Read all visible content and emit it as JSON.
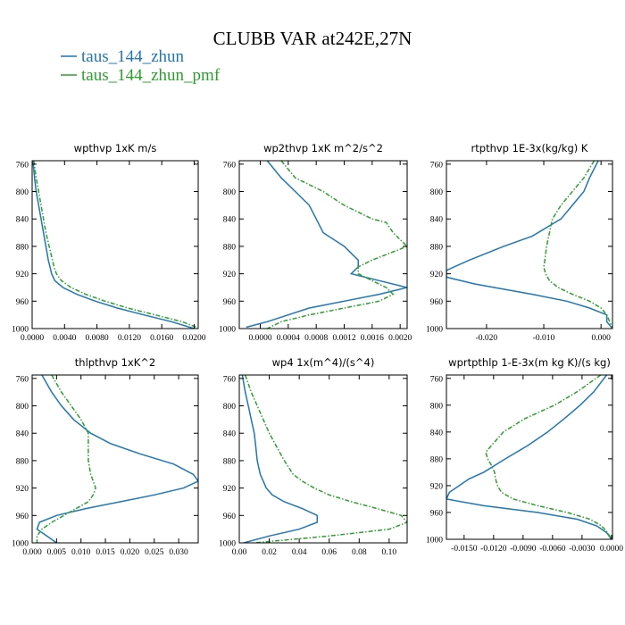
{
  "figure": {
    "title": "CLUBB VAR at242E,27N",
    "legend": [
      {
        "name": "taus_144_zhun",
        "color": "#1f77b4",
        "dash": "solid"
      },
      {
        "name": "taus_144_zhun_pmf",
        "color": "#2ca02c",
        "dash": "dashdot"
      }
    ]
  },
  "chart_data": [
    {
      "type": "line",
      "title": "wpthvp   1xK m/s",
      "xlim": [
        0,
        0.0205
      ],
      "ylim": [
        1000,
        755
      ],
      "xticks": [
        "0.0000",
        "0.0040",
        "0.0080",
        "0.0120",
        "0.0160",
        "0.0200"
      ],
      "xtick_values": [
        0,
        0.004,
        0.008,
        0.012,
        0.016,
        0.02
      ],
      "yticks": [
        "760",
        "800",
        "840",
        "880",
        "920",
        "960",
        "1000"
      ],
      "ytick_values": [
        760,
        800,
        840,
        880,
        920,
        960,
        1000
      ],
      "series": [
        {
          "name": "taus_144_zhun",
          "y": [
            755,
            780,
            800,
            820,
            840,
            860,
            880,
            900,
            910,
            920,
            930,
            940,
            950,
            960,
            970,
            980,
            990,
            1000
          ],
          "x": [
            0.0001,
            0.0003,
            0.0005,
            0.0008,
            0.0011,
            0.0014,
            0.0017,
            0.002,
            0.0022,
            0.0024,
            0.0028,
            0.0038,
            0.0055,
            0.0078,
            0.0105,
            0.0138,
            0.0172,
            0.02
          ]
        },
        {
          "name": "taus_144_zhun_pmf",
          "y": [
            755,
            780,
            800,
            820,
            840,
            860,
            880,
            900,
            910,
            920,
            930,
            940,
            950,
            960,
            970,
            980,
            990,
            998
          ],
          "x": [
            0.0002,
            0.0005,
            0.0008,
            0.0011,
            0.0014,
            0.0017,
            0.0021,
            0.0025,
            0.0027,
            0.003,
            0.0036,
            0.0048,
            0.0066,
            0.009,
            0.0118,
            0.0152,
            0.0185,
            0.0203
          ]
        }
      ]
    },
    {
      "type": "line",
      "title": "wp2thvp   1xK m^2/s^2",
      "xlim": [
        -0.0003,
        0.0021
      ],
      "ylim": [
        1000,
        755
      ],
      "xticks": [
        "0.0000",
        "0.0004",
        "0.0008",
        "0.0012",
        "0.0016",
        "0.0020"
      ],
      "xtick_values": [
        0,
        0.0004,
        0.0008,
        0.0012,
        0.0016,
        0.002
      ],
      "yticks": [
        "760",
        "800",
        "840",
        "880",
        "920",
        "960",
        "1000"
      ],
      "ytick_values": [
        760,
        800,
        840,
        880,
        920,
        960,
        1000
      ],
      "series": [
        {
          "name": "taus_144_zhun",
          "y": [
            755,
            780,
            800,
            820,
            840,
            860,
            880,
            900,
            910,
            920,
            930,
            940,
            950,
            960,
            970,
            980,
            990,
            998
          ],
          "x": [
            0.0001,
            0.0003,
            0.0005,
            0.0007,
            0.0008,
            0.0009,
            0.0012,
            0.0014,
            0.0014,
            0.0013,
            0.0017,
            0.0021,
            0.0017,
            0.0012,
            0.0007,
            0.0004,
            0.0001,
            -0.0002
          ]
        },
        {
          "name": "taus_144_zhun_pmf",
          "y": [
            755,
            780,
            800,
            820,
            840,
            845,
            860,
            880,
            900,
            910,
            920,
            930,
            940,
            950,
            960,
            970,
            980,
            990,
            1000
          ],
          "x": [
            0.0003,
            0.0005,
            0.0009,
            0.0012,
            0.0016,
            0.0018,
            0.0019,
            0.0021,
            0.0016,
            0.0014,
            0.0014,
            0.0016,
            0.0018,
            0.0019,
            0.0017,
            0.0012,
            0.0007,
            0.0003,
            0.0001
          ]
        }
      ]
    },
    {
      "type": "line",
      "title": "rtpthvp   1E-3x(kg/kg) K",
      "xlim": [
        -0.027,
        0.002
      ],
      "ylim": [
        1000,
        755
      ],
      "xticks": [
        "-0.020",
        "-0.010",
        "0.000"
      ],
      "xtick_values": [
        -0.02,
        -0.01,
        0
      ],
      "yticks": [
        "760",
        "800",
        "840",
        "880",
        "920",
        "960",
        "1000"
      ],
      "ytick_values": [
        760,
        800,
        840,
        880,
        920,
        960,
        1000
      ],
      "series": [
        {
          "name": "taus_144_zhun",
          "y": [
            755,
            780,
            800,
            820,
            840,
            850,
            865,
            880,
            900,
            915,
            925,
            935,
            950,
            960,
            970,
            980,
            990,
            1000
          ],
          "x": [
            -0.0005,
            -0.002,
            -0.003,
            -0.005,
            -0.007,
            -0.009,
            -0.012,
            -0.017,
            -0.023,
            -0.027,
            -0.027,
            -0.022,
            -0.012,
            -0.006,
            -0.002,
            0.001,
            0.001,
            0.002
          ]
        },
        {
          "name": "taus_144_zhun_pmf",
          "y": [
            755,
            780,
            800,
            820,
            840,
            860,
            880,
            900,
            910,
            920,
            930,
            940,
            950,
            960,
            970,
            980,
            990,
            1000
          ],
          "x": [
            -0.0012,
            -0.003,
            -0.005,
            -0.007,
            -0.0085,
            -0.009,
            -0.0095,
            -0.0098,
            -0.01,
            -0.0097,
            -0.009,
            -0.0075,
            -0.005,
            -0.002,
            0,
            0.001,
            0.0015,
            0.002
          ]
        }
      ]
    },
    {
      "type": "line",
      "title": "thlpthvp   1xK^2",
      "xlim": [
        0,
        0.034
      ],
      "ylim": [
        1000,
        755
      ],
      "xticks": [
        "0.000",
        "0.005",
        "0.010",
        "0.015",
        "0.020",
        "0.025",
        "0.030"
      ],
      "xtick_values": [
        0,
        0.005,
        0.01,
        0.015,
        0.02,
        0.025,
        0.03
      ],
      "yticks": [
        "760",
        "800",
        "840",
        "880",
        "920",
        "960",
        "1000"
      ],
      "ytick_values": [
        760,
        800,
        840,
        880,
        920,
        960,
        1000
      ],
      "series": [
        {
          "name": "taus_144_zhun",
          "y": [
            755,
            780,
            800,
            820,
            840,
            855,
            870,
            885,
            900,
            910,
            920,
            930,
            940,
            950,
            960,
            970,
            980,
            990,
            1000
          ],
          "x": [
            0.002,
            0.004,
            0.006,
            0.0085,
            0.012,
            0.016,
            0.022,
            0.029,
            0.033,
            0.034,
            0.031,
            0.025,
            0.018,
            0.011,
            0.005,
            0.0015,
            0.001,
            0.003,
            0.005
          ]
        },
        {
          "name": "taus_144_zhun_pmf",
          "y": [
            755,
            780,
            800,
            820,
            840,
            860,
            880,
            900,
            910,
            920,
            930,
            940,
            950,
            960,
            970,
            980,
            990,
            1000
          ],
          "x": [
            0.004,
            0.006,
            0.008,
            0.01,
            0.0115,
            0.0115,
            0.0115,
            0.012,
            0.0125,
            0.013,
            0.0125,
            0.0115,
            0.009,
            0.0065,
            0.004,
            0.002,
            0.001,
            0.001
          ]
        }
      ]
    },
    {
      "type": "line",
      "title": "wp4   1x(m^4)/(s^4)",
      "xlim": [
        0,
        0.112
      ],
      "ylim": [
        1000,
        755
      ],
      "xticks": [
        "0.00",
        "0.02",
        "0.04",
        "0.06",
        "0.08",
        "0.10"
      ],
      "xtick_values": [
        0,
        0.02,
        0.04,
        0.06,
        0.08,
        0.1
      ],
      "yticks": [
        "760",
        "800",
        "840",
        "880",
        "920",
        "960",
        "1000"
      ],
      "ytick_values": [
        760,
        800,
        840,
        880,
        920,
        960,
        1000
      ],
      "series": [
        {
          "name": "taus_144_zhun",
          "y": [
            755,
            780,
            800,
            820,
            840,
            860,
            880,
            900,
            910,
            920,
            930,
            940,
            950,
            960,
            970,
            980,
            990,
            1000
          ],
          "x": [
            0.002,
            0.004,
            0.006,
            0.008,
            0.01,
            0.011,
            0.012,
            0.014,
            0.016,
            0.018,
            0.022,
            0.03,
            0.042,
            0.052,
            0.052,
            0.04,
            0.02,
            0.003
          ]
        },
        {
          "name": "taus_144_zhun_pmf",
          "y": [
            755,
            780,
            800,
            820,
            840,
            860,
            880,
            900,
            910,
            920,
            930,
            940,
            950,
            960,
            970,
            980,
            990,
            1000
          ],
          "x": [
            0.004,
            0.008,
            0.012,
            0.016,
            0.02,
            0.025,
            0.03,
            0.036,
            0.042,
            0.05,
            0.06,
            0.075,
            0.092,
            0.108,
            0.112,
            0.1,
            0.06,
            0.01
          ]
        }
      ]
    },
    {
      "type": "line",
      "title": "wprtpthlp   1-E-3x(m kg K)/(s kg)",
      "xlim": [
        -0.0168,
        0.0001
      ],
      "ylim": [
        1000,
        755
      ],
      "xticks": [
        "-0.0150",
        "-0.0120",
        "-0.0090",
        "-0.0060",
        "-0.0030",
        "0.0000"
      ],
      "xtick_values": [
        -0.015,
        -0.012,
        -0.009,
        -0.006,
        -0.003,
        0
      ],
      "yticks": [
        "760",
        "800",
        "840",
        "880",
        "920",
        "960",
        "1000"
      ],
      "ytick_values": [
        760,
        800,
        840,
        880,
        920,
        960,
        1000
      ],
      "series": [
        {
          "name": "taus_144_zhun",
          "y": [
            755,
            780,
            800,
            820,
            840,
            860,
            880,
            900,
            910,
            920,
            930,
            940,
            950,
            960,
            970,
            980,
            990,
            1000
          ],
          "x": [
            -0.0005,
            -0.0018,
            -0.0032,
            -0.0048,
            -0.0065,
            -0.0085,
            -0.0108,
            -0.013,
            -0.0145,
            -0.0155,
            -0.0165,
            -0.0168,
            -0.013,
            -0.0075,
            -0.0035,
            -0.0015,
            -0.0005,
            0
          ]
        },
        {
          "name": "taus_144_zhun_pmf",
          "y": [
            755,
            780,
            800,
            820,
            840,
            860,
            870,
            880,
            890,
            900,
            910,
            920,
            930,
            940,
            950,
            960,
            970,
            980,
            990,
            1000
          ],
          "x": [
            -0.0011,
            -0.0035,
            -0.0058,
            -0.0088,
            -0.011,
            -0.0122,
            -0.0128,
            -0.0126,
            -0.0122,
            -0.0119,
            -0.0118,
            -0.0116,
            -0.0112,
            -0.01,
            -0.0075,
            -0.0045,
            -0.0022,
            -0.001,
            -0.0004,
            0
          ]
        }
      ]
    }
  ]
}
